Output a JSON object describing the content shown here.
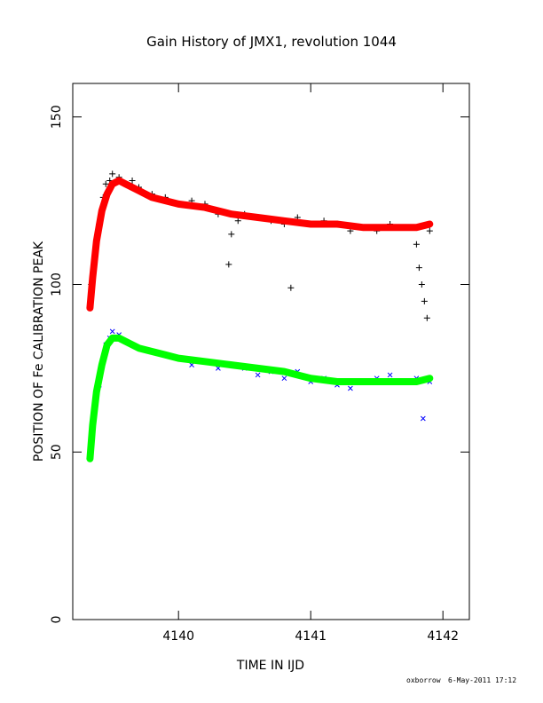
{
  "chart_data": {
    "type": "scatter",
    "title": "Gain History of JMX1, revolution 1044",
    "xlabel": "TIME IN IJD",
    "ylabel": "POSITION OF Fe CALIBRATION PEAK",
    "xlim": [
      4139.2,
      4142.2
    ],
    "ylim": [
      0,
      160
    ],
    "x_ticks": [
      4140,
      4141,
      4142
    ],
    "y_ticks": [
      0,
      50,
      100,
      150
    ],
    "grid": false,
    "series": [
      {
        "marker": "plus",
        "color": "#000000",
        "x": [
          4139.34,
          4139.4,
          4139.43,
          4139.45,
          4139.48,
          4139.5,
          4139.55,
          4139.6,
          4139.65,
          4139.7,
          4139.8,
          4139.9,
          4140.0,
          4140.1,
          4140.2,
          4140.3,
          4140.38,
          4140.4,
          4140.45,
          4140.5,
          4140.6,
          4140.7,
          4140.8,
          4140.85,
          4140.9,
          4141.0,
          4141.1,
          4141.2,
          4141.3,
          4141.4,
          4141.5,
          4141.6,
          4141.7,
          4141.8,
          4141.82,
          4141.84,
          4141.86,
          4141.88,
          4141.9
        ],
        "y": [
          100,
          118,
          126,
          130,
          131,
          133,
          132,
          130,
          131,
          129,
          127,
          126,
          124,
          125,
          124,
          121,
          106,
          115,
          119,
          121,
          120,
          119,
          118,
          99,
          120,
          118,
          119,
          118,
          116,
          117,
          116,
          118,
          117,
          112,
          105,
          100,
          95,
          90,
          116
        ]
      },
      {
        "marker": "line",
        "color": "#ff0000",
        "x": [
          4139.33,
          4139.35,
          4139.38,
          4139.42,
          4139.46,
          4139.5,
          4139.55,
          4139.6,
          4139.7,
          4139.8,
          4139.9,
          4140.0,
          4140.2,
          4140.4,
          4140.6,
          4140.8,
          4141.0,
          4141.2,
          4141.4,
          4141.6,
          4141.8,
          4141.9
        ],
        "y": [
          93,
          102,
          113,
          122,
          127,
          130,
          131,
          130,
          128,
          126,
          125,
          124,
          123,
          121,
          120,
          119,
          118,
          118,
          117,
          117,
          117,
          118
        ]
      },
      {
        "marker": "cross",
        "color": "#0000ff",
        "x": [
          4139.34,
          4139.4,
          4139.43,
          4139.45,
          4139.48,
          4139.5,
          4139.55,
          4139.6,
          4139.65,
          4139.7,
          4139.8,
          4139.9,
          4140.0,
          4140.1,
          4140.2,
          4140.3,
          4140.4,
          4140.5,
          4140.6,
          4140.7,
          4140.8,
          4140.9,
          4141.0,
          4141.1,
          4141.2,
          4141.3,
          4141.4,
          4141.5,
          4141.6,
          4141.7,
          4141.8,
          4141.85,
          4141.9
        ],
        "y": [
          55,
          70,
          78,
          82,
          84,
          86,
          85,
          83,
          82,
          81,
          80,
          79,
          78,
          76,
          77,
          75,
          76,
          75,
          73,
          74,
          72,
          74,
          71,
          72,
          70,
          69,
          71,
          72,
          73,
          71,
          72,
          60,
          71
        ]
      },
      {
        "marker": "line",
        "color": "#00ff00",
        "x": [
          4139.33,
          4139.35,
          4139.38,
          4139.42,
          4139.46,
          4139.5,
          4139.55,
          4139.6,
          4139.7,
          4139.8,
          4139.9,
          4140.0,
          4140.2,
          4140.4,
          4140.6,
          4140.8,
          4141.0,
          4141.2,
          4141.4,
          4141.6,
          4141.8,
          4141.9
        ],
        "y": [
          48,
          58,
          68,
          76,
          82,
          84,
          84,
          83,
          81,
          80,
          79,
          78,
          77,
          76,
          75,
          74,
          72,
          71,
          71,
          71,
          71,
          72
        ]
      }
    ]
  },
  "footer": {
    "author": "oxborrow",
    "date": "6-May-2011 17:12"
  }
}
